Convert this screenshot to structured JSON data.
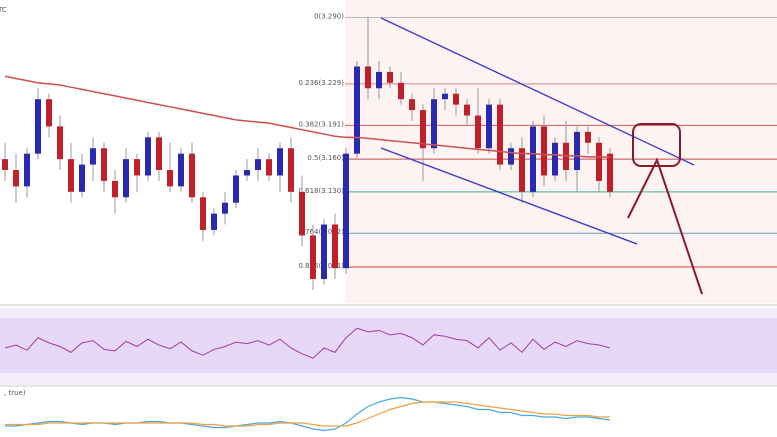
{
  "chart_data": {
    "type": "candlestick",
    "title": "TC",
    "macd_label": ", true)",
    "up_color": "#2a2ab0",
    "down_color": "#c0202a",
    "ma_color": "#d05050",
    "ylim": [
      3.028,
      3.306
    ],
    "fib_levels": [
      {
        "value": 3.29,
        "label": "0(3.290)",
        "color": "#bbbbbb"
      },
      {
        "value": 3.229,
        "label": "0.236(3.229)",
        "color": "#e08080"
      },
      {
        "value": 3.191,
        "label": "0.382(3.191)",
        "color": "#d06060"
      },
      {
        "value": 3.16,
        "label": "0.5(3.160)",
        "color": "#c05050"
      },
      {
        "value": 3.13,
        "label": "0.618(3.130)",
        "color": "#40b0a0"
      },
      {
        "value": 3.092,
        "label": "0.764(3.092)",
        "color": "#70a0c0"
      },
      {
        "value": 3.061,
        "label": "0.886(3.061)",
        "color": "#d04040"
      }
    ],
    "open": [
      3.16,
      3.15,
      3.135,
      3.165,
      3.215,
      3.19,
      3.16,
      3.13,
      3.155,
      3.17,
      3.14,
      3.125,
      3.16,
      3.145,
      3.18,
      3.15,
      3.135,
      3.165,
      3.125,
      3.095,
      3.11,
      3.12,
      3.145,
      3.15,
      3.16,
      3.145,
      3.17,
      3.13,
      3.09,
      3.05,
      3.1,
      3.06,
      3.165,
      3.245,
      3.225,
      3.24,
      3.23,
      3.215,
      3.205,
      3.17,
      3.215,
      3.22,
      3.21,
      3.2,
      3.17,
      3.21,
      3.155,
      3.17,
      3.13,
      3.19,
      3.145,
      3.175,
      3.15,
      3.185,
      3.175,
      3.165
    ],
    "high": [
      3.175,
      3.165,
      3.17,
      3.225,
      3.22,
      3.2,
      3.175,
      3.165,
      3.18,
      3.175,
      3.15,
      3.17,
      3.165,
      3.185,
      3.185,
      3.175,
      3.17,
      3.175,
      3.13,
      3.115,
      3.13,
      3.15,
      3.16,
      3.17,
      3.165,
      3.175,
      3.18,
      3.145,
      3.1,
      3.105,
      3.11,
      3.17,
      3.25,
      3.29,
      3.25,
      3.245,
      3.24,
      3.22,
      3.21,
      3.225,
      3.225,
      3.225,
      3.215,
      3.225,
      3.215,
      3.215,
      3.175,
      3.18,
      3.195,
      3.2,
      3.18,
      3.195,
      3.19,
      3.19,
      3.18,
      3.17
    ],
    "low": [
      3.14,
      3.12,
      3.125,
      3.16,
      3.18,
      3.15,
      3.12,
      3.125,
      3.14,
      3.13,
      3.11,
      3.12,
      3.13,
      3.14,
      3.14,
      3.13,
      3.13,
      3.12,
      3.085,
      3.09,
      3.1,
      3.115,
      3.14,
      3.14,
      3.14,
      3.13,
      3.12,
      3.08,
      3.04,
      3.045,
      3.05,
      3.055,
      3.16,
      3.215,
      3.215,
      3.225,
      3.21,
      3.195,
      3.14,
      3.165,
      3.205,
      3.2,
      3.19,
      3.165,
      3.165,
      3.15,
      3.15,
      3.12,
      3.125,
      3.135,
      3.14,
      3.14,
      3.13,
      3.165,
      3.13,
      3.125
    ],
    "close": [
      3.15,
      3.135,
      3.165,
      3.215,
      3.19,
      3.16,
      3.13,
      3.155,
      3.17,
      3.14,
      3.125,
      3.16,
      3.145,
      3.18,
      3.15,
      3.135,
      3.165,
      3.125,
      3.095,
      3.11,
      3.12,
      3.145,
      3.15,
      3.16,
      3.145,
      3.17,
      3.13,
      3.09,
      3.05,
      3.1,
      3.06,
      3.165,
      3.245,
      3.225,
      3.24,
      3.23,
      3.215,
      3.205,
      3.17,
      3.215,
      3.22,
      3.21,
      3.2,
      3.17,
      3.21,
      3.155,
      3.17,
      3.13,
      3.19,
      3.145,
      3.175,
      3.15,
      3.185,
      3.175,
      3.14,
      3.13
    ],
    "ma_values": [
      3.236,
      3.234,
      3.232,
      3.23,
      3.229,
      3.228,
      3.226,
      3.224,
      3.222,
      3.22,
      3.218,
      3.216,
      3.214,
      3.212,
      3.21,
      3.208,
      3.206,
      3.204,
      3.202,
      3.2,
      3.198,
      3.196,
      3.195,
      3.194,
      3.193,
      3.191,
      3.189,
      3.187,
      3.185,
      3.183,
      3.181,
      3.18,
      3.18,
      3.179,
      3.178,
      3.177,
      3.176,
      3.175,
      3.174,
      3.173,
      3.172,
      3.171,
      3.17,
      3.169,
      3.168,
      3.167,
      3.166,
      3.165,
      3.165,
      3.164,
      3.164,
      3.163,
      3.163,
      3.162,
      3.162,
      3.162
    ],
    "rsi_ylim": [
      0,
      100
    ],
    "rsi_color": "#9b3fa0",
    "rsi_values": [
      48,
      52,
      45,
      62,
      55,
      50,
      42,
      55,
      58,
      46,
      44,
      57,
      50,
      60,
      52,
      47,
      56,
      44,
      38,
      46,
      50,
      56,
      54,
      58,
      52,
      60,
      48,
      40,
      34,
      48,
      42,
      62,
      75,
      70,
      72,
      66,
      68,
      62,
      52,
      66,
      64,
      60,
      58,
      48,
      62,
      45,
      55,
      42,
      60,
      46,
      56,
      50,
      58,
      54,
      52,
      48
    ],
    "macd_ylim": [
      -0.008,
      0.022
    ],
    "macd_color": "#4aa8e0",
    "signal_color": "#f0a040",
    "macd_values": [
      -0.002,
      -0.002,
      -0.001,
      0,
      0.001,
      0.001,
      0,
      -0.001,
      0,
      0,
      -0.001,
      0,
      0,
      0.001,
      0.001,
      0,
      0,
      -0.001,
      -0.002,
      -0.003,
      -0.003,
      -0.002,
      -0.001,
      0,
      0,
      0.001,
      0,
      -0.002,
      -0.004,
      -0.005,
      -0.004,
      0,
      0.006,
      0.011,
      0.014,
      0.016,
      0.017,
      0.016,
      0.014,
      0.014,
      0.013,
      0.012,
      0.011,
      0.009,
      0.009,
      0.007,
      0.007,
      0.005,
      0.005,
      0.004,
      0.004,
      0.003,
      0.004,
      0.004,
      0.003,
      0.002
    ],
    "signal_values": [
      -0.001,
      -0.001,
      -0.001,
      -0.001,
      0,
      0,
      0,
      0,
      0,
      0,
      0,
      0,
      0,
      0,
      0,
      0,
      0,
      0,
      -0.001,
      -0.001,
      -0.002,
      -0.002,
      -0.002,
      -0.001,
      -0.001,
      0,
      0,
      0,
      -0.001,
      -0.002,
      -0.002,
      -0.002,
      0,
      0.003,
      0.006,
      0.009,
      0.011,
      0.013,
      0.014,
      0.014,
      0.014,
      0.014,
      0.013,
      0.012,
      0.011,
      0.01,
      0.009,
      0.008,
      0.007,
      0.006,
      0.006,
      0.005,
      0.005,
      0.005,
      0.004,
      0.004
    ]
  }
}
